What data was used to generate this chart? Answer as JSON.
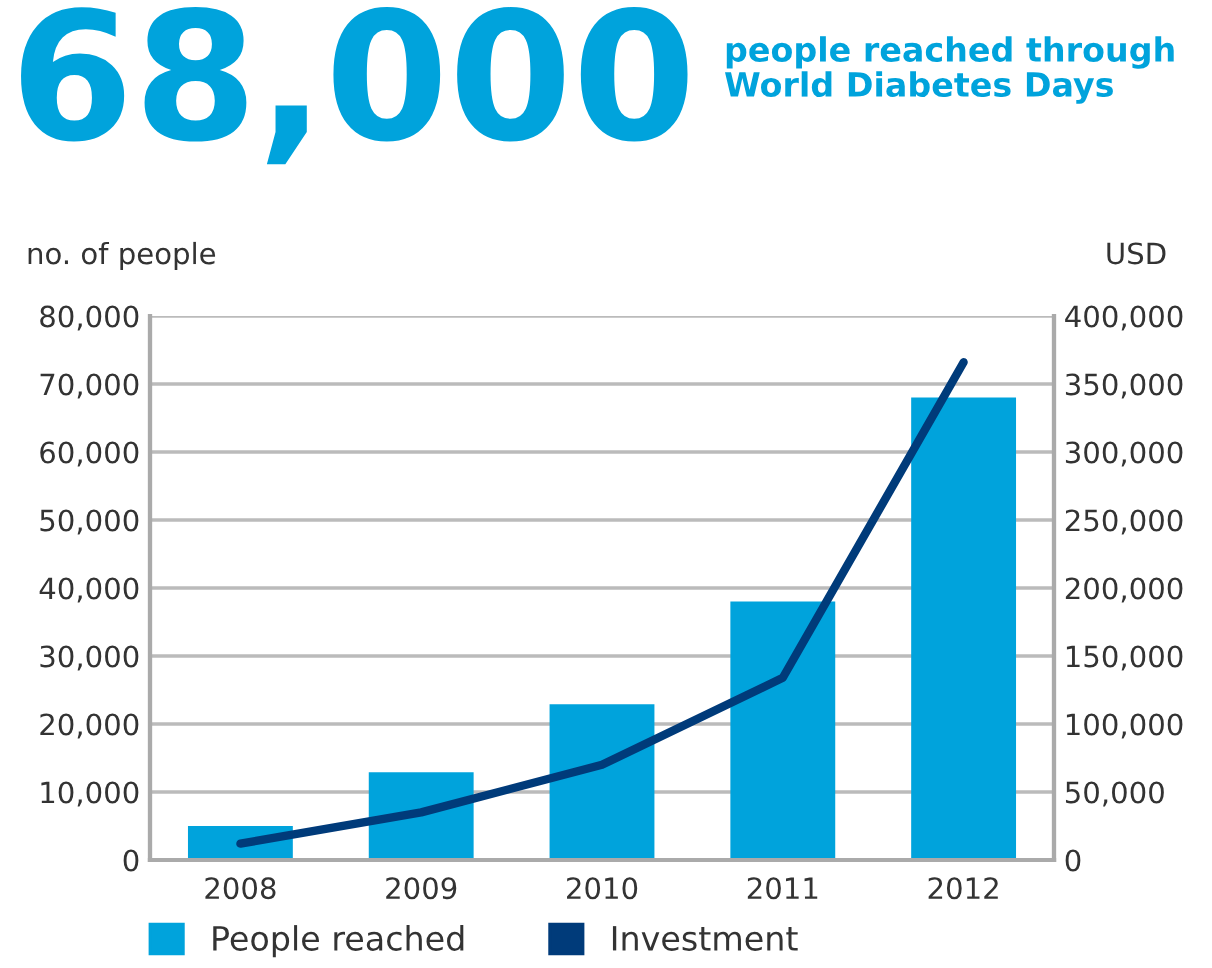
{
  "chart_data": {
    "type": "bar",
    "title": "68,000",
    "subtitle": "people reached through\nWorld Diabetes Days",
    "ylabel": "no. of people",
    "y2label": "USD",
    "categories": [
      "2008",
      "2009",
      "2010",
      "2011",
      "2012"
    ],
    "series": [
      {
        "name": "People reached",
        "color": "#00a3dc",
        "values": [
          5000,
          12900,
          22900,
          38000,
          68000
        ]
      },
      {
        "name": "Investment",
        "type": "line",
        "axis": "y2",
        "color": "#003b7a",
        "values": [
          12000,
          35000,
          70000,
          134000,
          366000
        ]
      }
    ],
    "ylim": [
      0,
      80000
    ],
    "yticks": [
      {
        "value": 0,
        "label": "0"
      },
      {
        "value": 10000,
        "label": "10,000"
      },
      {
        "value": 20000,
        "label": "20,000"
      },
      {
        "value": 30000,
        "label": "30,000"
      },
      {
        "value": 40000,
        "label": "40,000"
      },
      {
        "value": 50000,
        "label": "50,000"
      },
      {
        "value": 60000,
        "label": "60,000"
      },
      {
        "value": 70000,
        "label": "70,000"
      },
      {
        "value": 80000,
        "label": "80,000"
      }
    ],
    "y2lim": [
      0,
      400000
    ],
    "y2ticks": [
      {
        "value": 0,
        "label": "0"
      },
      {
        "value": 50000,
        "label": "50,000"
      },
      {
        "value": 100000,
        "label": "100,000"
      },
      {
        "value": 150000,
        "label": "150,000"
      },
      {
        "value": 200000,
        "label": "200,000"
      },
      {
        "value": 250000,
        "label": "250,000"
      },
      {
        "value": 300000,
        "label": "300,000"
      },
      {
        "value": 350000,
        "label": "350,000"
      },
      {
        "value": 400000,
        "label": "400,000"
      }
    ],
    "grid": "y",
    "legend": "bottom",
    "marker": "none",
    "line_style": "solid"
  }
}
